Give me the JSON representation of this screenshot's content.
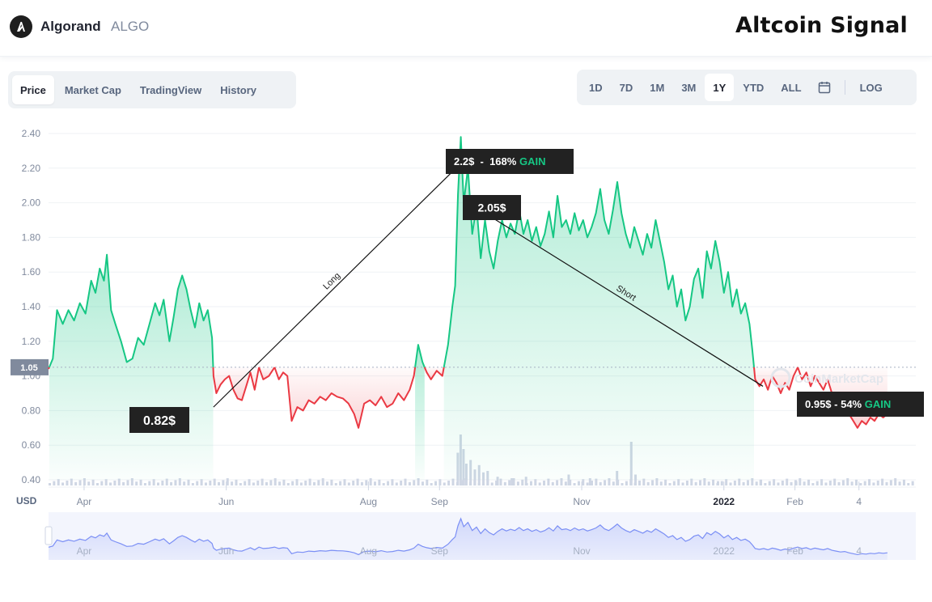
{
  "header": {
    "coin_name": "Algorand",
    "coin_symbol": "ALGO",
    "signal_title": "Altcoin Signal"
  },
  "tabs": [
    {
      "label": "Price",
      "active": true
    },
    {
      "label": "Market Cap",
      "active": false
    },
    {
      "label": "TradingView",
      "active": false
    },
    {
      "label": "History",
      "active": false
    }
  ],
  "ranges": [
    {
      "label": "1D",
      "active": false
    },
    {
      "label": "7D",
      "active": false
    },
    {
      "label": "1M",
      "active": false
    },
    {
      "label": "3M",
      "active": false
    },
    {
      "label": "1Y",
      "active": true
    },
    {
      "label": "YTD",
      "active": false
    },
    {
      "label": "ALL",
      "active": false
    }
  ],
  "calendar_icon": "calendar-icon",
  "log_label": "LOG",
  "colors": {
    "up": "#16c784",
    "down": "#ea3943",
    "volume": "#cfd6e4",
    "navigator": "#7b8ff5",
    "annotation_bg": "#222222",
    "gain": "#16c784"
  },
  "chart_data": {
    "type": "line",
    "currency_label": "USD",
    "reference_price": 1.05,
    "reference_label": "1.05",
    "y_ticks": [
      "2.40",
      "2.20",
      "2.00",
      "1.80",
      "1.60",
      "1.40",
      "1.20",
      "1.00",
      "0.80",
      "0.60",
      "0.40"
    ],
    "ylim": [
      0.4,
      2.4
    ],
    "x_ticks": [
      {
        "label": "Apr",
        "x": 0.5
      },
      {
        "label": "Jun",
        "x": 2.5
      },
      {
        "label": "Aug",
        "x": 4.5
      },
      {
        "label": "Sep",
        "x": 5.5
      },
      {
        "label": "Nov",
        "x": 7.5
      },
      {
        "label": "2022",
        "x": 9.5
      },
      {
        "label": "Feb",
        "x": 10.5
      },
      {
        "label": "4",
        "x": 11.4
      }
    ],
    "xlim": [
      0,
      12.2
    ],
    "series": [
      {
        "points": [
          [
            0,
            1.04
          ],
          [
            0.06,
            1.1
          ],
          [
            0.12,
            1.38
          ],
          [
            0.2,
            1.3
          ],
          [
            0.28,
            1.38
          ],
          [
            0.36,
            1.32
          ],
          [
            0.44,
            1.42
          ],
          [
            0.52,
            1.36
          ],
          [
            0.6,
            1.55
          ],
          [
            0.66,
            1.48
          ],
          [
            0.72,
            1.62
          ],
          [
            0.78,
            1.55
          ],
          [
            0.82,
            1.7
          ],
          [
            0.88,
            1.38
          ],
          [
            0.94,
            1.3
          ],
          [
            1.02,
            1.2
          ],
          [
            1.1,
            1.08
          ],
          [
            1.18,
            1.1
          ],
          [
            1.26,
            1.22
          ],
          [
            1.34,
            1.18
          ],
          [
            1.42,
            1.3
          ],
          [
            1.5,
            1.42
          ],
          [
            1.56,
            1.35
          ],
          [
            1.62,
            1.44
          ],
          [
            1.7,
            1.2
          ],
          [
            1.76,
            1.34
          ],
          [
            1.82,
            1.5
          ],
          [
            1.88,
            1.58
          ],
          [
            1.94,
            1.5
          ],
          [
            2.0,
            1.38
          ],
          [
            2.06,
            1.28
          ],
          [
            2.12,
            1.42
          ],
          [
            2.18,
            1.32
          ],
          [
            2.24,
            1.38
          ],
          [
            2.3,
            1.22
          ],
          [
            2.32,
            1.0
          ],
          [
            2.36,
            0.9
          ],
          [
            2.42,
            0.95
          ],
          [
            2.48,
            0.98
          ],
          [
            2.54,
            1.0
          ],
          [
            2.6,
            0.92
          ],
          [
            2.66,
            0.87
          ],
          [
            2.72,
            0.86
          ],
          [
            2.78,
            0.94
          ],
          [
            2.84,
            1.02
          ],
          [
            2.9,
            0.92
          ],
          [
            2.96,
            1.05
          ],
          [
            3.02,
            0.98
          ],
          [
            3.1,
            1.0
          ],
          [
            3.18,
            1.05
          ],
          [
            3.24,
            0.98
          ],
          [
            3.3,
            1.02
          ],
          [
            3.36,
            1.0
          ],
          [
            3.42,
            0.74
          ],
          [
            3.5,
            0.82
          ],
          [
            3.58,
            0.8
          ],
          [
            3.66,
            0.86
          ],
          [
            3.74,
            0.84
          ],
          [
            3.82,
            0.88
          ],
          [
            3.9,
            0.86
          ],
          [
            3.98,
            0.9
          ],
          [
            4.06,
            0.88
          ],
          [
            4.14,
            0.87
          ],
          [
            4.22,
            0.84
          ],
          [
            4.3,
            0.78
          ],
          [
            4.36,
            0.7
          ],
          [
            4.44,
            0.84
          ],
          [
            4.52,
            0.86
          ],
          [
            4.6,
            0.83
          ],
          [
            4.68,
            0.88
          ],
          [
            4.76,
            0.82
          ],
          [
            4.84,
            0.84
          ],
          [
            4.92,
            0.9
          ],
          [
            5.0,
            0.86
          ],
          [
            5.08,
            0.92
          ],
          [
            5.14,
            1.0
          ],
          [
            5.2,
            1.18
          ],
          [
            5.26,
            1.08
          ],
          [
            5.32,
            1.02
          ],
          [
            5.38,
            0.98
          ],
          [
            5.46,
            1.03
          ],
          [
            5.54,
            1.0
          ],
          [
            5.62,
            1.18
          ],
          [
            5.68,
            1.4
          ],
          [
            5.72,
            1.52
          ],
          [
            5.76,
            2.05
          ],
          [
            5.8,
            2.38
          ],
          [
            5.84,
            2.0
          ],
          [
            5.9,
            2.2
          ],
          [
            5.96,
            1.82
          ],
          [
            6.02,
            1.98
          ],
          [
            6.08,
            1.68
          ],
          [
            6.14,
            1.9
          ],
          [
            6.2,
            1.72
          ],
          [
            6.26,
            1.62
          ],
          [
            6.32,
            1.78
          ],
          [
            6.38,
            1.9
          ],
          [
            6.44,
            1.8
          ],
          [
            6.5,
            1.88
          ],
          [
            6.56,
            1.82
          ],
          [
            6.62,
            1.96
          ],
          [
            6.68,
            1.82
          ],
          [
            6.74,
            1.9
          ],
          [
            6.8,
            1.78
          ],
          [
            6.86,
            1.86
          ],
          [
            6.92,
            1.75
          ],
          [
            6.98,
            1.82
          ],
          [
            7.04,
            1.95
          ],
          [
            7.1,
            1.8
          ],
          [
            7.16,
            2.04
          ],
          [
            7.22,
            1.86
          ],
          [
            7.28,
            1.9
          ],
          [
            7.34,
            1.82
          ],
          [
            7.4,
            1.94
          ],
          [
            7.46,
            1.84
          ],
          [
            7.52,
            1.9
          ],
          [
            7.58,
            1.8
          ],
          [
            7.64,
            1.86
          ],
          [
            7.7,
            1.94
          ],
          [
            7.76,
            2.08
          ],
          [
            7.82,
            1.9
          ],
          [
            7.88,
            1.82
          ],
          [
            7.94,
            1.96
          ],
          [
            8.0,
            2.12
          ],
          [
            8.06,
            1.94
          ],
          [
            8.12,
            1.82
          ],
          [
            8.18,
            1.74
          ],
          [
            8.24,
            1.86
          ],
          [
            8.3,
            1.78
          ],
          [
            8.36,
            1.7
          ],
          [
            8.42,
            1.82
          ],
          [
            8.48,
            1.74
          ],
          [
            8.54,
            1.9
          ],
          [
            8.6,
            1.78
          ],
          [
            8.66,
            1.66
          ],
          [
            8.72,
            1.5
          ],
          [
            8.78,
            1.58
          ],
          [
            8.84,
            1.4
          ],
          [
            8.9,
            1.5
          ],
          [
            8.96,
            1.32
          ],
          [
            9.02,
            1.4
          ],
          [
            9.08,
            1.56
          ],
          [
            9.14,
            1.62
          ],
          [
            9.2,
            1.45
          ],
          [
            9.26,
            1.72
          ],
          [
            9.32,
            1.62
          ],
          [
            9.38,
            1.78
          ],
          [
            9.44,
            1.66
          ],
          [
            9.5,
            1.48
          ],
          [
            9.56,
            1.6
          ],
          [
            9.62,
            1.4
          ],
          [
            9.68,
            1.5
          ],
          [
            9.74,
            1.36
          ],
          [
            9.8,
            1.42
          ],
          [
            9.86,
            1.3
          ],
          [
            9.9,
            1.15
          ],
          [
            9.94,
            0.98
          ],
          [
            10.0,
            0.94
          ],
          [
            10.06,
            0.98
          ],
          [
            10.12,
            0.92
          ],
          [
            10.18,
            1.0
          ],
          [
            10.24,
            0.96
          ],
          [
            10.3,
            0.9
          ],
          [
            10.36,
            0.96
          ],
          [
            10.42,
            0.92
          ],
          [
            10.48,
            1.0
          ],
          [
            10.54,
            1.05
          ],
          [
            10.6,
            0.98
          ],
          [
            10.66,
            1.02
          ],
          [
            10.72,
            0.94
          ],
          [
            10.78,
            1.0
          ],
          [
            10.84,
            0.96
          ],
          [
            10.9,
            0.92
          ],
          [
            10.96,
            0.98
          ],
          [
            11.02,
            0.9
          ],
          [
            11.08,
            0.86
          ],
          [
            11.14,
            0.82
          ],
          [
            11.2,
            0.84
          ],
          [
            11.26,
            0.78
          ],
          [
            11.32,
            0.74
          ],
          [
            11.38,
            0.7
          ],
          [
            11.44,
            0.74
          ],
          [
            11.5,
            0.72
          ],
          [
            11.56,
            0.76
          ],
          [
            11.62,
            0.74
          ],
          [
            11.68,
            0.78
          ],
          [
            11.74,
            0.76
          ],
          [
            11.8,
            0.78
          ]
        ]
      }
    ],
    "volume": [
      {
        "x": 5.74,
        "v": 0.45
      },
      {
        "x": 5.78,
        "v": 0.7
      },
      {
        "x": 5.82,
        "v": 0.5
      },
      {
        "x": 5.86,
        "v": 0.3
      },
      {
        "x": 5.92,
        "v": 0.35
      },
      {
        "x": 5.98,
        "v": 0.22
      },
      {
        "x": 6.04,
        "v": 0.28
      },
      {
        "x": 6.1,
        "v": 0.18
      },
      {
        "x": 6.16,
        "v": 0.2
      },
      {
        "x": 6.3,
        "v": 0.12
      },
      {
        "x": 6.5,
        "v": 0.1
      },
      {
        "x": 6.7,
        "v": 0.12
      },
      {
        "x": 7.3,
        "v": 0.15
      },
      {
        "x": 7.6,
        "v": 0.1
      },
      {
        "x": 7.98,
        "v": 0.2
      },
      {
        "x": 8.18,
        "v": 0.6
      },
      {
        "x": 8.24,
        "v": 0.15
      },
      {
        "x": 9.4,
        "v": 0.06
      },
      {
        "x": 10.0,
        "v": 0.08
      },
      {
        "x": 10.5,
        "v": 0.06
      }
    ],
    "annotations": [
      {
        "label": "0.82$",
        "price": 0.82
      },
      {
        "label": "2.2$  -  168% ",
        "gain": "GAIN",
        "price": 2.2
      },
      {
        "label": "2.05$",
        "price": 2.05
      },
      {
        "label": "0.95$ - 54% ",
        "gain": "GAIN",
        "price": 0.95
      }
    ],
    "trend_lines": [
      {
        "label": "Long",
        "from": [
          2.32,
          0.82
        ],
        "to": [
          5.78,
          2.22
        ]
      },
      {
        "label": "Short",
        "from": [
          6.1,
          1.95
        ],
        "to": [
          10.05,
          0.94
        ]
      }
    ],
    "watermark": "CoinMarketCap",
    "navigator_ticks": [
      "Apr",
      "Jun",
      "Aug",
      "Sep",
      "Nov",
      "2022",
      "Feb",
      "4"
    ]
  }
}
